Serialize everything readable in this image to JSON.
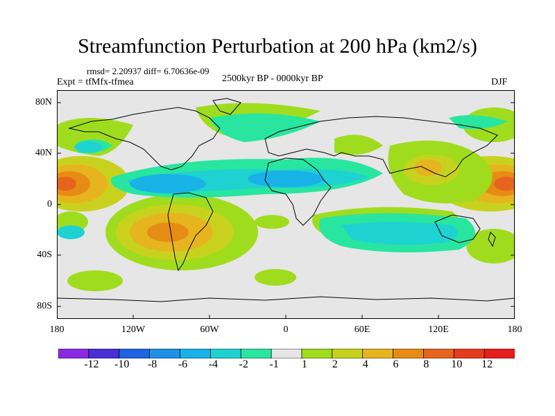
{
  "title": "Streamfunction Perturbation at 200 hPa (km2/s)",
  "stats": "rmsd= 2.20937 diff= 6.70636e-09",
  "experiment": "Expt = tfMfx-tfmea",
  "period": "2500kyr BP - 0000kyr BP",
  "season": "DJF",
  "lat_ticks": [
    "80N",
    "40N",
    "0",
    "40S",
    "80S"
  ],
  "lon_ticks": [
    "180",
    "120W",
    "60W",
    "0",
    "60E",
    "120E",
    "180"
  ],
  "colorbar": {
    "labels": [
      "-12",
      "-10",
      "-8",
      "-6",
      "-4",
      "-2",
      "-1",
      "1",
      "2",
      "4",
      "6",
      "8",
      "10",
      "12"
    ],
    "colors": [
      "#8a2be2",
      "#4b2fd6",
      "#1e64e0",
      "#1e90e6",
      "#19b2e6",
      "#1ed2d2",
      "#28e6a0",
      "#e6e6e6",
      "#a0dc1e",
      "#c8d21e",
      "#e6b41e",
      "#e68c14",
      "#e6641e",
      "#e63c1e",
      "#e61e1e"
    ]
  },
  "fields": {
    "neutral": "#e6e6e6",
    "land": "#000000"
  }
}
